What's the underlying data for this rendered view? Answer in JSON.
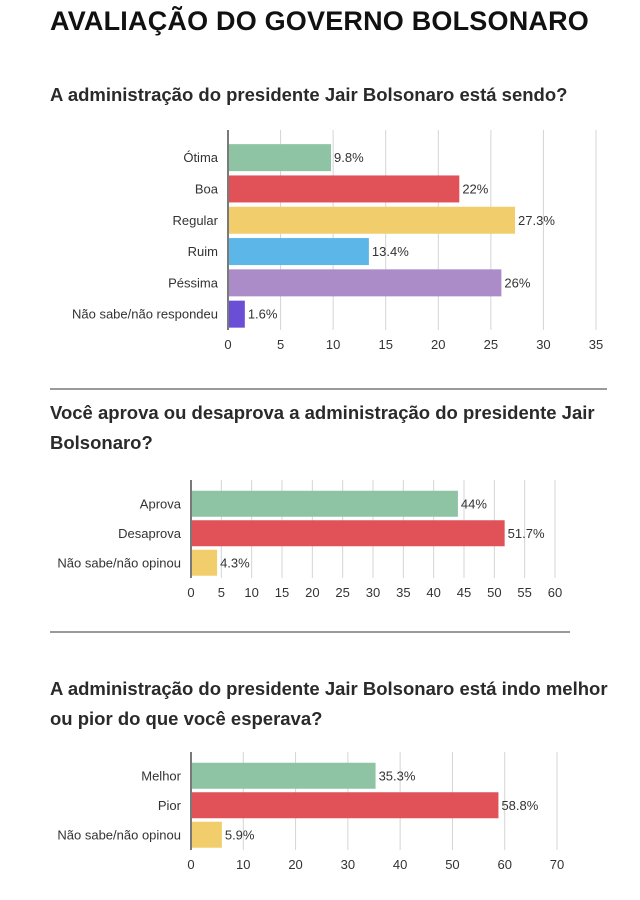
{
  "header": {
    "title": "AVALIAÇÃO DO GOVERNO BOLSONARO"
  },
  "chart_data": [
    {
      "type": "bar",
      "orientation": "horizontal",
      "title": "A administração do presidente Jair Bolsonaro está sendo?",
      "categories": [
        "Ótima",
        "Boa",
        "Regular",
        "Ruim",
        "Péssima",
        "Não sabe/não respondeu"
      ],
      "values": [
        9.8,
        22,
        27.3,
        13.4,
        26,
        1.6
      ],
      "value_labels": [
        "9.8%",
        "22%",
        "27.3%",
        "13.4%",
        "26%",
        "1.6%"
      ],
      "colors": [
        "#8ec4a4",
        "#e05158",
        "#f2cd6b",
        "#5cb6e8",
        "#ab8cc9",
        "#6a4fd6"
      ],
      "xlim": [
        0,
        35
      ],
      "ticks": [
        0,
        5,
        10,
        15,
        20,
        25,
        30,
        35
      ],
      "grid": true
    },
    {
      "type": "bar",
      "orientation": "horizontal",
      "title": "Você aprova ou desaprova a administração do presidente Jair Bolsonaro?",
      "categories": [
        "Aprova",
        "Desaprova",
        "Não sabe/não opinou"
      ],
      "values": [
        44,
        51.7,
        4.3
      ],
      "value_labels": [
        "44%",
        "51.7%",
        "4.3%"
      ],
      "colors": [
        "#8ec4a4",
        "#e05158",
        "#f2cd6b"
      ],
      "xlim": [
        0,
        60
      ],
      "ticks": [
        0,
        5,
        10,
        15,
        20,
        25,
        30,
        35,
        40,
        45,
        50,
        55,
        60
      ],
      "grid": true
    },
    {
      "type": "bar",
      "orientation": "horizontal",
      "title": "A administração do presidente Jair Bolsonaro está indo melhor ou pior do que você esperava?",
      "categories": [
        "Melhor",
        "Pior",
        "Não sabe/não opinou"
      ],
      "values": [
        35.3,
        58.8,
        5.9
      ],
      "value_labels": [
        "35.3%",
        "58.8%",
        "5.9%"
      ],
      "colors": [
        "#8ec4a4",
        "#e05158",
        "#f2cd6b"
      ],
      "xlim": [
        0,
        70
      ],
      "ticks": [
        0,
        10,
        20,
        30,
        40,
        50,
        60,
        70
      ],
      "grid": true
    }
  ]
}
